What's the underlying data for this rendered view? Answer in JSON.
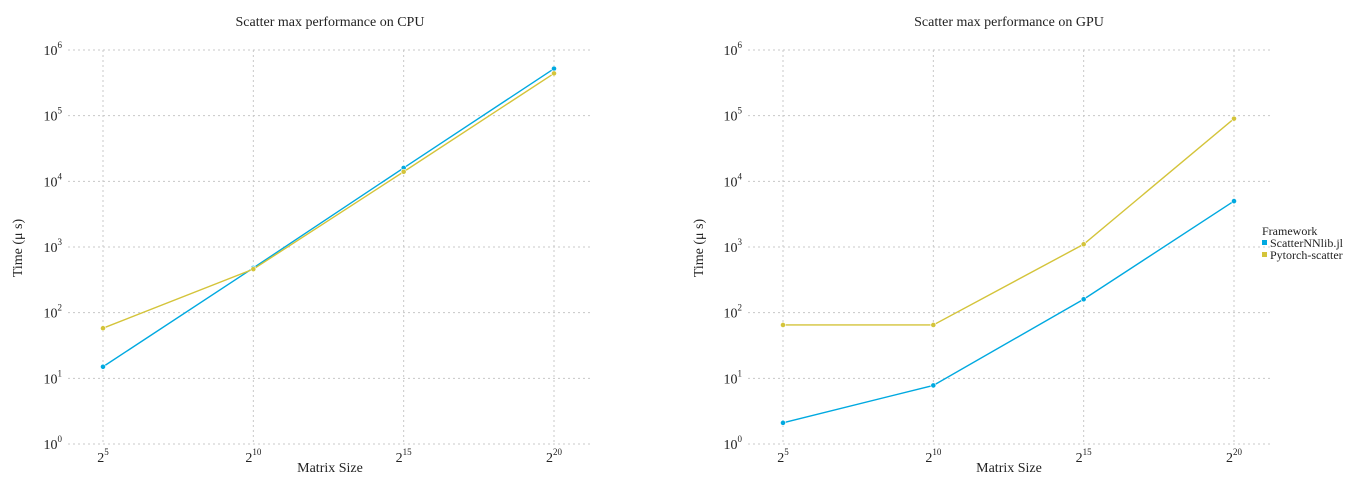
{
  "chart_data": [
    {
      "type": "line",
      "title": "Scatter max performance on CPU",
      "xlabel": "Matrix Size",
      "ylabel": "Time (μ s)",
      "x_scale": "log2",
      "y_scale": "log10",
      "x": [
        32,
        1024,
        32768,
        1048576
      ],
      "x_tick_labels": [
        {
          "base": "2",
          "exp": "5"
        },
        {
          "base": "2",
          "exp": "10"
        },
        {
          "base": "2",
          "exp": "15"
        },
        {
          "base": "2",
          "exp": "20"
        }
      ],
      "y_tick_labels": [
        {
          "base": "10",
          "exp": "0"
        },
        {
          "base": "10",
          "exp": "1"
        },
        {
          "base": "10",
          "exp": "2"
        },
        {
          "base": "10",
          "exp": "3"
        },
        {
          "base": "10",
          "exp": "4"
        },
        {
          "base": "10",
          "exp": "5"
        },
        {
          "base": "10",
          "exp": "6"
        }
      ],
      "ylim": [
        1,
        1000000
      ],
      "grid": true,
      "series": [
        {
          "name": "ScatterNNlib.jl",
          "color": "#00a9e0",
          "values": [
            15,
            480,
            16000,
            520000
          ]
        },
        {
          "name": "Pytorch-scatter",
          "color": "#d4c43a",
          "values": [
            58,
            460,
            14000,
            440000
          ]
        }
      ]
    },
    {
      "type": "line",
      "title": "Scatter max performance on GPU",
      "xlabel": "Matrix Size",
      "ylabel": "Time (μ s)",
      "x_scale": "log2",
      "y_scale": "log10",
      "x": [
        32,
        1024,
        32768,
        1048576
      ],
      "x_tick_labels": [
        {
          "base": "2",
          "exp": "5"
        },
        {
          "base": "2",
          "exp": "10"
        },
        {
          "base": "2",
          "exp": "15"
        },
        {
          "base": "2",
          "exp": "20"
        }
      ],
      "y_tick_labels": [
        {
          "base": "10",
          "exp": "0"
        },
        {
          "base": "10",
          "exp": "1"
        },
        {
          "base": "10",
          "exp": "2"
        },
        {
          "base": "10",
          "exp": "3"
        },
        {
          "base": "10",
          "exp": "4"
        },
        {
          "base": "10",
          "exp": "5"
        },
        {
          "base": "10",
          "exp": "6"
        }
      ],
      "ylim": [
        1,
        1000000
      ],
      "grid": true,
      "series": [
        {
          "name": "ScatterNNlib.jl",
          "color": "#00a9e0",
          "values": [
            2.1,
            7.8,
            160,
            5000
          ]
        },
        {
          "name": "Pytorch-scatter",
          "color": "#d4c43a",
          "values": [
            65,
            65,
            1100,
            90000
          ]
        }
      ]
    }
  ],
  "legend": {
    "title": "Framework",
    "placement": "right",
    "items": [
      {
        "label": "ScatterNNlib.jl",
        "color": "#00a9e0"
      },
      {
        "label": "Pytorch-scatter",
        "color": "#d4c43a"
      }
    ]
  }
}
